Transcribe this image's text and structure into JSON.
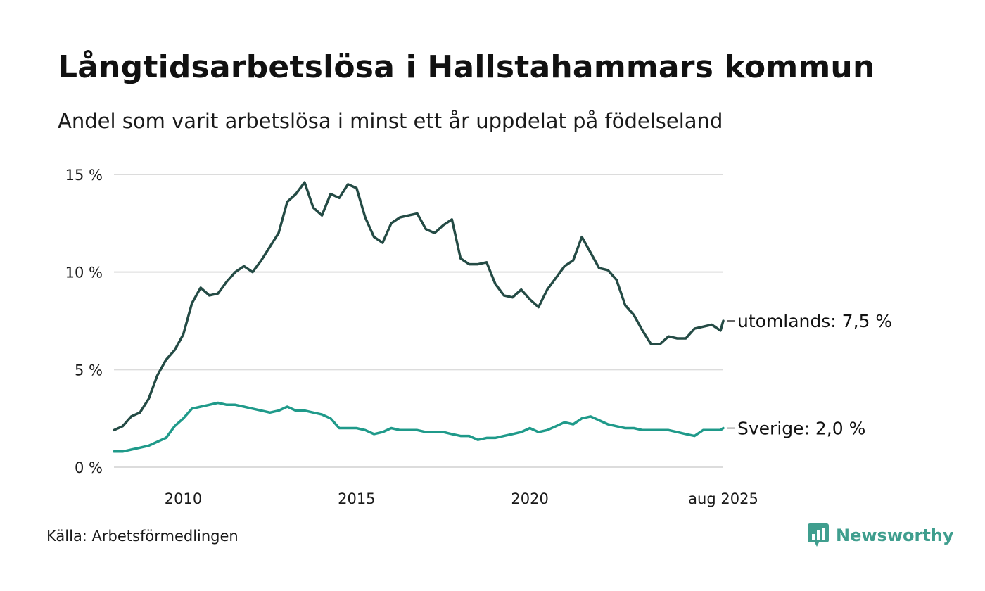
{
  "title": "Långtidsarbetslösa i Hallstahammars kommun",
  "subtitle": "Andel som varit arbetslösa i minst ett år uppdelat på födelseland",
  "source": "Källa: Arbetsförmedlingen",
  "brand": "Newsworthy",
  "colors": {
    "utomlands": "#244b45",
    "sverige": "#1f9a8a",
    "grid": "#dcdcdc",
    "brand": "#3f9e8e"
  },
  "chart_data": {
    "type": "line",
    "ylim": [
      0,
      15
    ],
    "y_ticks": [
      {
        "value": 0,
        "label": "0 %"
      },
      {
        "value": 5,
        "label": "5 %"
      },
      {
        "value": 10,
        "label": "10 %"
      },
      {
        "value": 15,
        "label": "15 %"
      }
    ],
    "x_ticks": [
      {
        "value": 2010,
        "label": "2010"
      },
      {
        "value": 2015,
        "label": "2015"
      },
      {
        "value": 2020,
        "label": "2020"
      },
      {
        "value": 2025.58,
        "label": "aug 2025"
      }
    ],
    "grid": true,
    "series": [
      {
        "name": "utomlands",
        "end_label": "utomlands: 7,5 %",
        "color_key": "utomlands",
        "x": [
          2008.0,
          2008.25,
          2008.5,
          2008.75,
          2009.0,
          2009.25,
          2009.5,
          2009.75,
          2010.0,
          2010.25,
          2010.5,
          2010.75,
          2011.0,
          2011.25,
          2011.5,
          2011.75,
          2012.0,
          2012.25,
          2012.5,
          2012.75,
          2013.0,
          2013.25,
          2013.5,
          2013.75,
          2014.0,
          2014.25,
          2014.5,
          2014.75,
          2015.0,
          2015.25,
          2015.5,
          2015.75,
          2016.0,
          2016.25,
          2016.5,
          2016.75,
          2017.0,
          2017.25,
          2017.5,
          2017.75,
          2018.0,
          2018.25,
          2018.5,
          2018.75,
          2019.0,
          2019.25,
          2019.5,
          2019.75,
          2020.0,
          2020.25,
          2020.5,
          2020.75,
          2021.0,
          2021.25,
          2021.5,
          2021.75,
          2022.0,
          2022.25,
          2022.5,
          2022.75,
          2023.0,
          2023.25,
          2023.5,
          2023.75,
          2024.0,
          2024.25,
          2024.5,
          2024.75,
          2025.0,
          2025.25,
          2025.5,
          2025.58
        ],
        "values": [
          1.9,
          2.1,
          2.6,
          2.8,
          3.5,
          4.7,
          5.5,
          6.0,
          6.8,
          8.4,
          9.2,
          8.8,
          8.9,
          9.5,
          10.0,
          10.3,
          10.0,
          10.6,
          11.3,
          12.0,
          13.6,
          14.0,
          14.6,
          13.3,
          12.9,
          14.0,
          13.8,
          14.5,
          14.3,
          12.8,
          11.8,
          11.5,
          12.5,
          12.8,
          12.9,
          13.0,
          12.2,
          12.0,
          12.4,
          12.7,
          10.7,
          10.4,
          10.4,
          10.5,
          9.4,
          8.8,
          8.7,
          9.1,
          8.6,
          8.2,
          9.1,
          9.7,
          10.3,
          10.6,
          11.8,
          11.0,
          10.2,
          10.1,
          9.6,
          8.3,
          7.8,
          7.0,
          6.3,
          6.3,
          6.7,
          6.6,
          6.6,
          7.1,
          7.2,
          7.3,
          7.0,
          7.5
        ]
      },
      {
        "name": "Sverige",
        "end_label": "Sverige: 2,0 %",
        "color_key": "sverige",
        "x": [
          2008.0,
          2008.25,
          2008.5,
          2008.75,
          2009.0,
          2009.25,
          2009.5,
          2009.75,
          2010.0,
          2010.25,
          2010.5,
          2010.75,
          2011.0,
          2011.25,
          2011.5,
          2011.75,
          2012.0,
          2012.25,
          2012.5,
          2012.75,
          2013.0,
          2013.25,
          2013.5,
          2013.75,
          2014.0,
          2014.25,
          2014.5,
          2014.75,
          2015.0,
          2015.25,
          2015.5,
          2015.75,
          2016.0,
          2016.25,
          2016.5,
          2016.75,
          2017.0,
          2017.25,
          2017.5,
          2017.75,
          2018.0,
          2018.25,
          2018.5,
          2018.75,
          2019.0,
          2019.25,
          2019.5,
          2019.75,
          2020.0,
          2020.25,
          2020.5,
          2020.75,
          2021.0,
          2021.25,
          2021.5,
          2021.75,
          2022.0,
          2022.25,
          2022.5,
          2022.75,
          2023.0,
          2023.25,
          2023.5,
          2023.75,
          2024.0,
          2024.25,
          2024.5,
          2024.75,
          2025.0,
          2025.25,
          2025.5,
          2025.58
        ],
        "values": [
          0.8,
          0.8,
          0.9,
          1.0,
          1.1,
          1.3,
          1.5,
          2.1,
          2.5,
          3.0,
          3.1,
          3.2,
          3.3,
          3.2,
          3.2,
          3.1,
          3.0,
          2.9,
          2.8,
          2.9,
          3.1,
          2.9,
          2.9,
          2.8,
          2.7,
          2.5,
          2.0,
          2.0,
          2.0,
          1.9,
          1.7,
          1.8,
          2.0,
          1.9,
          1.9,
          1.9,
          1.8,
          1.8,
          1.8,
          1.7,
          1.6,
          1.6,
          1.4,
          1.5,
          1.5,
          1.6,
          1.7,
          1.8,
          2.0,
          1.8,
          1.9,
          2.1,
          2.3,
          2.2,
          2.5,
          2.6,
          2.4,
          2.2,
          2.1,
          2.0,
          2.0,
          1.9,
          1.9,
          1.9,
          1.9,
          1.8,
          1.7,
          1.6,
          1.9,
          1.9,
          1.9,
          2.0
        ]
      }
    ]
  }
}
